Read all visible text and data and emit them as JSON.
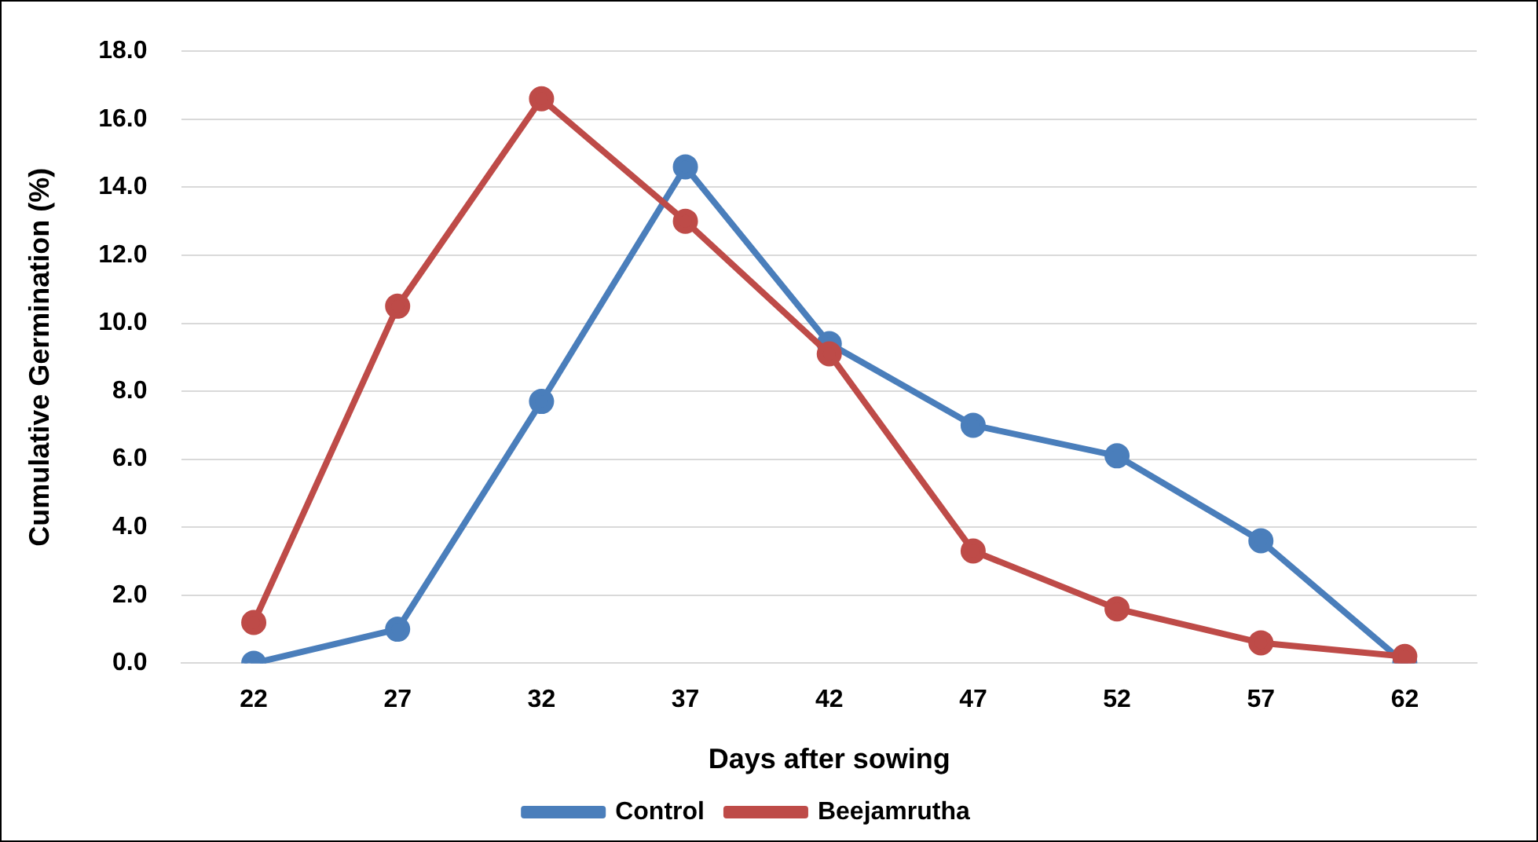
{
  "chart_data": {
    "type": "line",
    "xlabel": "Days after sowing",
    "ylabel": "Cumulative Germination (%)",
    "categories": [
      "22",
      "27",
      "32",
      "37",
      "42",
      "47",
      "52",
      "57",
      "62"
    ],
    "series": [
      {
        "name": "Control",
        "color": "#4a7ebb",
        "values": [
          0,
          1.0,
          7.7,
          14.6,
          9.4,
          7.0,
          6.1,
          3.6,
          0
        ]
      },
      {
        "name": "Beejamrutha",
        "color": "#be4b48",
        "values": [
          1.2,
          10.5,
          16.6,
          13.0,
          9.1,
          3.3,
          1.6,
          0.6,
          0.2
        ]
      }
    ],
    "ylim": [
      0,
      18
    ],
    "yticks": [
      {
        "value": 0,
        "label": "0.0"
      },
      {
        "value": 2,
        "label": "2.0"
      },
      {
        "value": 4,
        "label": "4.0"
      },
      {
        "value": 6,
        "label": "6.0"
      },
      {
        "value": 8,
        "label": "8.0"
      },
      {
        "value": 10,
        "label": "10.0"
      },
      {
        "value": 12,
        "label": "12.0"
      },
      {
        "value": 14,
        "label": "14.0"
      },
      {
        "value": 16,
        "label": "16.0"
      },
      {
        "value": 18,
        "label": "18.0"
      }
    ],
    "grid": "y",
    "legend": "bottom",
    "marker": "circle",
    "line_style": "solid"
  }
}
